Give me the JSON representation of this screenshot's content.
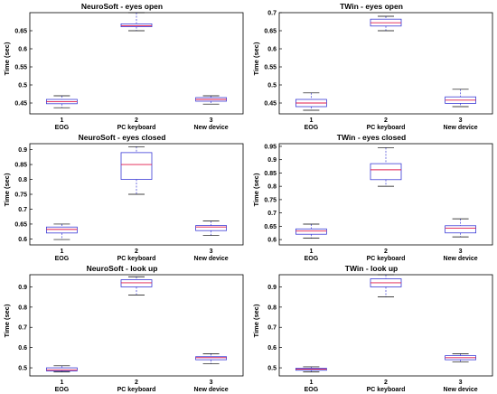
{
  "categories": [
    "EOG",
    "PC keyboard",
    "New device"
  ],
  "category_numbers": [
    "1",
    "2",
    "3"
  ],
  "colors": {
    "box": "#3b3bd6",
    "median": "#e0194a",
    "whisker": "#3b3bd6"
  },
  "chart_data": [
    {
      "type": "box",
      "title": "NeuroSoft - eyes open",
      "ylabel": "Time (sec)",
      "ylim": [
        0.42,
        0.7
      ],
      "yticks": [
        0.45,
        0.5,
        0.55,
        0.6,
        0.65
      ],
      "boxes": [
        {
          "min": 0.437,
          "q1": 0.448,
          "median": 0.454,
          "q3": 0.46,
          "max": 0.47
        },
        {
          "min": 0.65,
          "q1": 0.661,
          "median": 0.664,
          "q3": 0.669,
          "max": 0.7
        },
        {
          "min": 0.447,
          "q1": 0.455,
          "median": 0.46,
          "q3": 0.465,
          "max": 0.47
        }
      ]
    },
    {
      "type": "box",
      "title": "TWin - eyes open",
      "ylabel": "Time (sec)",
      "ylim": [
        0.42,
        0.7
      ],
      "yticks": [
        0.45,
        0.5,
        0.55,
        0.6,
        0.65,
        0.7
      ],
      "boxes": [
        {
          "min": 0.43,
          "q1": 0.44,
          "median": 0.45,
          "q3": 0.46,
          "max": 0.478
        },
        {
          "min": 0.65,
          "q1": 0.663,
          "median": 0.672,
          "q3": 0.682,
          "max": 0.69
        },
        {
          "min": 0.44,
          "q1": 0.449,
          "median": 0.458,
          "q3": 0.467,
          "max": 0.488
        }
      ]
    },
    {
      "type": "box",
      "title": "NeuroSoft - eyes closed",
      "ylabel": "Time (sec)",
      "ylim": [
        0.58,
        0.92
      ],
      "yticks": [
        0.6,
        0.65,
        0.7,
        0.75,
        0.8,
        0.85,
        0.9
      ],
      "boxes": [
        {
          "min": 0.598,
          "q1": 0.62,
          "median": 0.632,
          "q3": 0.64,
          "max": 0.65
        },
        {
          "min": 0.75,
          "q1": 0.8,
          "median": 0.85,
          "q3": 0.89,
          "max": 0.91
        },
        {
          "min": 0.612,
          "q1": 0.628,
          "median": 0.64,
          "q3": 0.645,
          "max": 0.66
        }
      ]
    },
    {
      "type": "box",
      "title": "TWin - eyes closed",
      "ylabel": "Time (sec)",
      "ylim": [
        0.58,
        0.96
      ],
      "yticks": [
        0.6,
        0.65,
        0.7,
        0.75,
        0.8,
        0.85,
        0.9,
        0.95
      ],
      "boxes": [
        {
          "min": 0.605,
          "q1": 0.62,
          "median": 0.632,
          "q3": 0.64,
          "max": 0.658
        },
        {
          "min": 0.8,
          "q1": 0.825,
          "median": 0.862,
          "q3": 0.885,
          "max": 0.945
        },
        {
          "min": 0.61,
          "q1": 0.625,
          "median": 0.643,
          "q3": 0.652,
          "max": 0.678
        }
      ]
    },
    {
      "type": "box",
      "title": "NeuroSoft - look up",
      "ylabel": "Time (sec)",
      "ylim": [
        0.46,
        0.96
      ],
      "yticks": [
        0.5,
        0.6,
        0.7,
        0.8,
        0.9
      ],
      "boxes": [
        {
          "min": 0.48,
          "q1": 0.485,
          "median": 0.49,
          "q3": 0.5,
          "max": 0.51
        },
        {
          "min": 0.86,
          "q1": 0.9,
          "median": 0.92,
          "q3": 0.935,
          "max": 0.95
        },
        {
          "min": 0.52,
          "q1": 0.54,
          "median": 0.55,
          "q3": 0.555,
          "max": 0.57
        }
      ]
    },
    {
      "type": "box",
      "title": "TWin - look up",
      "ylabel": "Time (sec)",
      "ylim": [
        0.46,
        0.96
      ],
      "yticks": [
        0.5,
        0.6,
        0.7,
        0.8,
        0.9
      ],
      "boxes": [
        {
          "min": 0.48,
          "q1": 0.488,
          "median": 0.493,
          "q3": 0.498,
          "max": 0.505
        },
        {
          "min": 0.85,
          "q1": 0.9,
          "median": 0.92,
          "q3": 0.94,
          "max": 0.96
        },
        {
          "min": 0.53,
          "q1": 0.54,
          "median": 0.55,
          "q3": 0.56,
          "max": 0.57
        }
      ]
    }
  ]
}
